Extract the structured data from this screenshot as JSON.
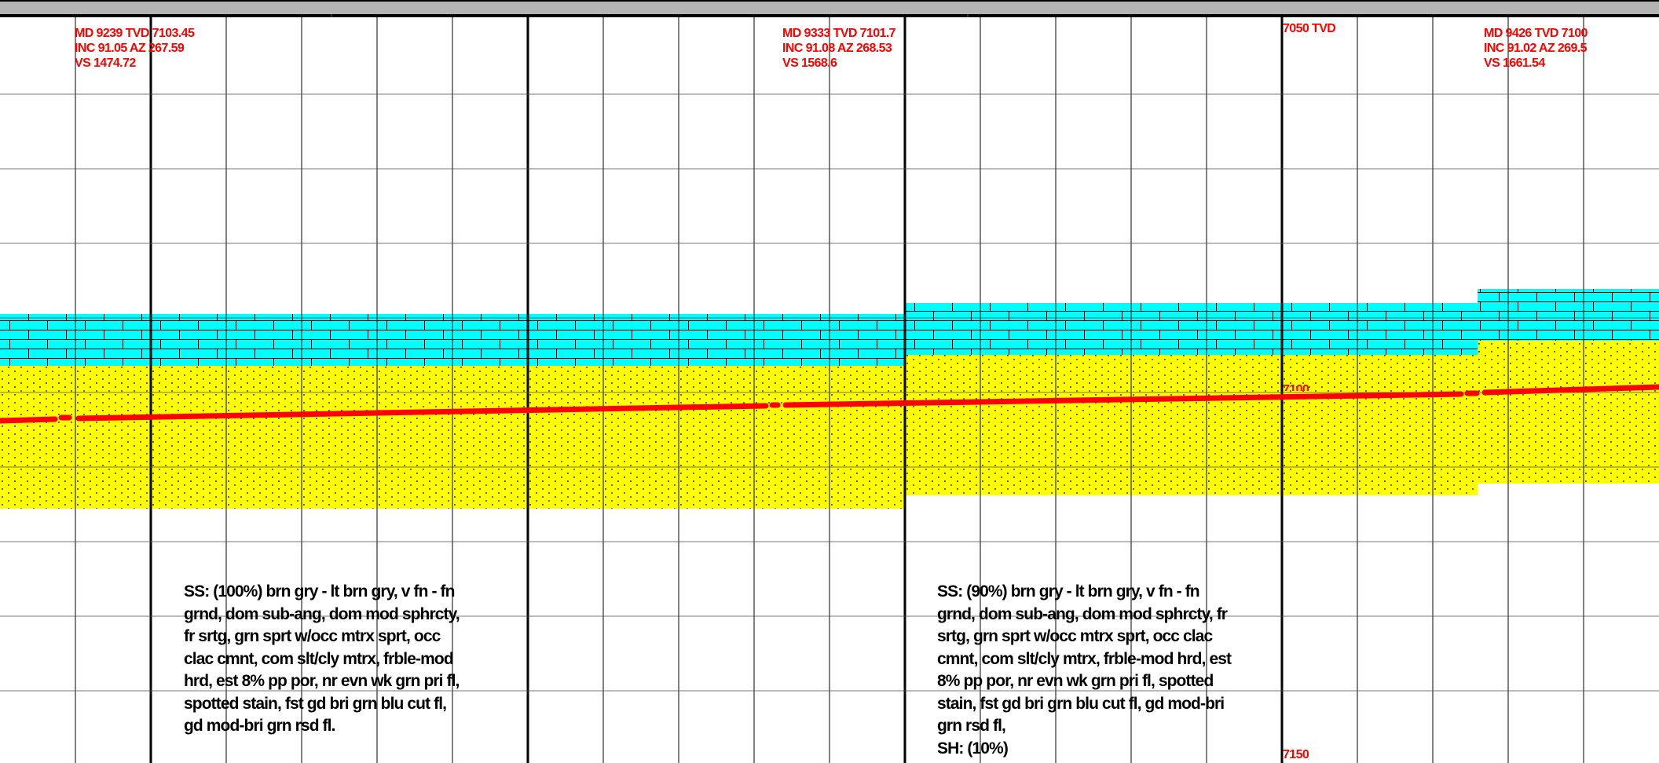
{
  "header": {
    "border_color": "#000000",
    "bar_color": "#b4b4b4"
  },
  "colors": {
    "limestone_fill": "#00ffff",
    "sandstone_fill": "#ffff00",
    "wellbore": "#ff0000",
    "grid_line": "#000000",
    "annotation_text": "#ff0000"
  },
  "surveys": [
    {
      "md_line": "MD 9239 TVD 7103.45",
      "inc_line": "INC 91.05 AZ 267.59",
      "vs_line": "VS 1474.72"
    },
    {
      "md_line": "MD 9333 TVD 7101.7",
      "inc_line": "INC 91.08 AZ 268.53",
      "vs_line": "VS 1568.6"
    },
    {
      "md_line": "MD 9426 TVD 7100",
      "inc_line": "INC 91.02 AZ 269.5",
      "vs_line": "VS 1661.54"
    }
  ],
  "tvd_scale": {
    "label_top": "7050 TVD",
    "label_mid": "7100",
    "label_bottom": "7150"
  },
  "lithology": {
    "left": {
      "lines": [
        "SS: (100%) brn gry - lt brn gry, v fn - fn",
        "grnd, dom sub-ang, dom mod sphrcty,",
        "fr srtg, grn sprt w/occ mtrx sprt, occ",
        "clac cmnt, com slt/cly mtrx, frble-mod",
        "hrd, est 8% pp por, nr evn wk grn pri fl,",
        "spotted stain, fst gd bri grn blu cut fl,",
        "gd mod-bri grn rsd fl."
      ]
    },
    "right": {
      "lines": [
        "SS: (90%) brn gry - lt brn gry, v fn - fn",
        "grnd, dom sub-ang, dom mod sphrcty, fr",
        "srtg, grn sprt w/occ mtrx sprt, occ clac",
        "cmnt, com slt/cly mtrx, frble-mod hrd, est",
        "8% pp por, nr evn wk grn pri fl, spotted",
        "stain, fst gd bri grn blu cut fl, gd mod-bri",
        "grn rsd fl,",
        "SH: (10%)"
      ]
    }
  }
}
